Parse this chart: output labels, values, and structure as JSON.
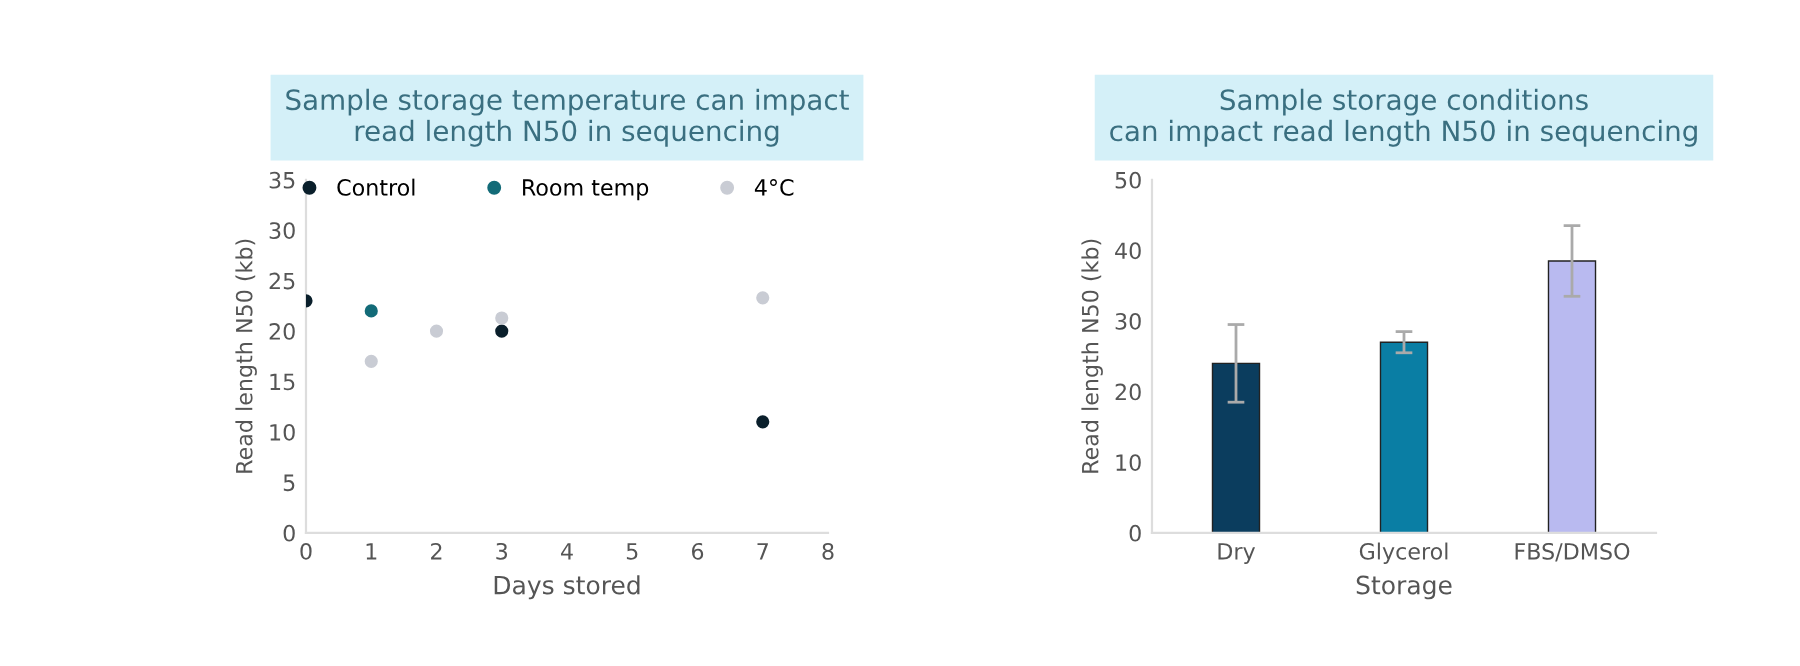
{
  "chart_data": [
    {
      "type": "scatter",
      "title": "Sample storage temperature can impact\nread length N50 in sequencing",
      "xlabel": "Days stored",
      "ylabel": "Read length N50 (kb)",
      "xlim": [
        0,
        8
      ],
      "xticks": [
        0,
        1,
        2,
        3,
        4,
        5,
        6,
        7,
        8
      ],
      "ylim": [
        0,
        35
      ],
      "yticks": [
        0,
        5,
        10,
        15,
        20,
        25,
        30,
        35
      ],
      "grid": false,
      "legend": "top",
      "marker": "circle",
      "series": [
        {
          "name": "Control",
          "color": "#0a1f2b",
          "x": [
            0,
            3,
            7
          ],
          "values": [
            23,
            20,
            11
          ]
        },
        {
          "name": "Room temp",
          "color": "#136b78",
          "x": [
            1
          ],
          "values": [
            22
          ]
        },
        {
          "name": "4°C",
          "color": "#c9ccd4",
          "x": [
            1,
            2,
            3,
            7
          ],
          "values": [
            17,
            20,
            21.3,
            23.3
          ]
        }
      ]
    },
    {
      "type": "bar",
      "title": "Sample storage conditions\ncan impact read length N50 in sequencing",
      "xlabel": "Storage",
      "ylabel": "Read length N50 (kb)",
      "categories": [
        "Dry",
        "Glycerol",
        "FBS/DMSO"
      ],
      "values": [
        24,
        27,
        38.5
      ],
      "errors": [
        5.5,
        1.5,
        5
      ],
      "colors": [
        "#0b3d5e",
        "#0a7ea4",
        "#b9baf0"
      ],
      "ylim": [
        0,
        50
      ],
      "yticks": [
        0,
        10,
        20,
        30,
        40,
        50
      ],
      "grid": false
    }
  ]
}
